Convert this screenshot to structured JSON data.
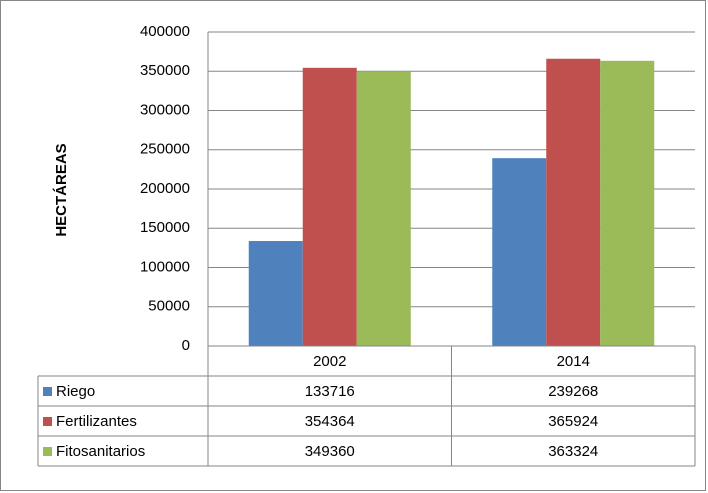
{
  "chart_data": {
    "type": "bar",
    "y_label": "HECTÁREAS",
    "categories": [
      "2002",
      "2014"
    ],
    "series": [
      {
        "name": "Riego",
        "color": "#4f81bd",
        "values": [
          133716,
          239268
        ]
      },
      {
        "name": "Fertilizantes",
        "color": "#c0504d",
        "values": [
          354364,
          365924
        ]
      },
      {
        "name": "Fitosanitarios",
        "color": "#9bbb59",
        "values": [
          349360,
          363324
        ]
      }
    ],
    "ylim": [
      0,
      400000
    ],
    "yticks": [
      0,
      50000,
      100000,
      150000,
      200000,
      250000,
      300000,
      350000,
      400000
    ],
    "grid": true,
    "data_table": true
  }
}
